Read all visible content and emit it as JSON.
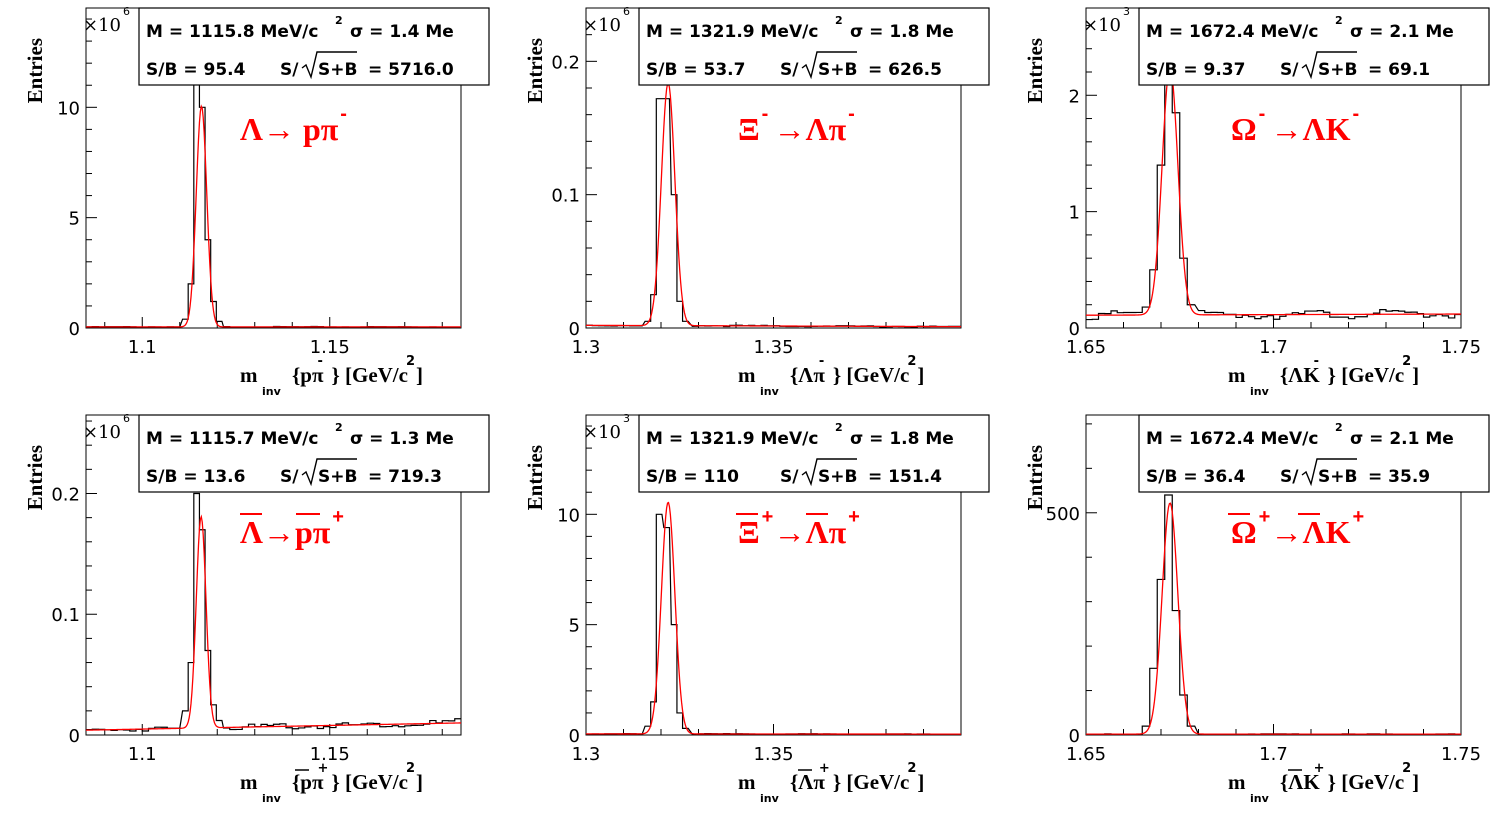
{
  "colors": {
    "frame": "#000000",
    "histogram": "#000000",
    "fit": "#ff0000",
    "decay_label": "#ff0000",
    "background": "#ffffff"
  },
  "common": {
    "ylabel": "Entries"
  },
  "chart_data": [
    {
      "type": "histogram",
      "xlim": [
        1.085,
        1.185
      ],
      "ylim": [
        0,
        14.5
      ],
      "xticks": [
        1.1,
        1.15
      ],
      "xtick_labels": [
        "1.1",
        "1.15"
      ],
      "yticks": [
        0,
        5,
        10
      ],
      "ytick_labels": [
        "0",
        "5",
        "10"
      ],
      "exponent": "×10",
      "exponent_power": "6",
      "xlabel": {
        "m": "m",
        "sub": "inv",
        "expr": "{pπ",
        "sup": "-",
        "rest": "} [GeV/c",
        "unit_sup": "2",
        "close": "]"
      },
      "stats": {
        "mass": "M = 1115.8 MeV/c",
        "mass_sup": "2",
        "sigma": "σ = 1.4 Me",
        "sb": "S/B = 95.4",
        "signif_prefix": "S/",
        "signif_arg": "S+B",
        "signif_val": "= 5716.0"
      },
      "decay": {
        "parts": [
          [
            "Λ→ pπ",
            "-"
          ]
        ],
        "bars": []
      },
      "peak": {
        "mu": 1.1158,
        "sigma": 0.0014,
        "amp": 10.0,
        "bg": [
          0.05,
          0.05
        ]
      },
      "hist_peak": [
        [
          1.1115,
          0.4
        ],
        [
          1.113,
          2.0
        ],
        [
          1.1145,
          11.3
        ],
        [
          1.116,
          10.0
        ],
        [
          1.1175,
          4.0
        ],
        [
          1.119,
          1.2
        ],
        [
          1.1205,
          0.3
        ]
      ]
    },
    {
      "type": "histogram",
      "xlim": [
        1.3,
        1.4
      ],
      "ylim": [
        0,
        0.24
      ],
      "xticks": [
        1.3,
        1.35
      ],
      "xtick_labels": [
        "1.3",
        "1.35"
      ],
      "yticks": [
        0,
        0.1,
        0.2
      ],
      "ytick_labels": [
        "0",
        "0.1",
        "0.2"
      ],
      "exponent": "×10",
      "exponent_power": "6",
      "xlabel": {
        "m": "m",
        "sub": "inv",
        "expr": "{Λπ",
        "sup": "-",
        "rest": "} [GeV/c",
        "unit_sup": "2",
        "close": "]"
      },
      "stats": {
        "mass": "M = 1321.9 MeV/c",
        "mass_sup": "2",
        "sigma": "σ = 1.8 Me",
        "sb": "S/B = 53.7",
        "signif_prefix": "S/",
        "signif_arg": "S+B",
        "signif_val": "= 626.5"
      },
      "decay": {
        "parts": [
          [
            "Ξ",
            "-"
          ],
          [
            "→Λπ",
            "-"
          ]
        ],
        "bars": []
      },
      "peak": {
        "mu": 1.3219,
        "sigma": 0.0018,
        "amp": 0.182,
        "bg": [
          0.002,
          0.001
        ]
      },
      "hist_peak": [
        [
          1.3165,
          0.005
        ],
        [
          1.318,
          0.025
        ],
        [
          1.3195,
          0.172
        ],
        [
          1.3215,
          0.172
        ],
        [
          1.3235,
          0.1
        ],
        [
          1.325,
          0.02
        ],
        [
          1.3265,
          0.005
        ]
      ]
    },
    {
      "type": "histogram",
      "xlim": [
        1.65,
        1.75
      ],
      "ylim": [
        0,
        2.75
      ],
      "xticks": [
        1.65,
        1.7,
        1.75
      ],
      "xtick_labels": [
        "1.65",
        "1.7",
        "1.75"
      ],
      "yticks": [
        0,
        1,
        2
      ],
      "ytick_labels": [
        "0",
        "1",
        "2"
      ],
      "exponent": "×10",
      "exponent_power": "3",
      "xlabel": {
        "m": "m",
        "sub": "inv",
        "expr": "{ΛK",
        "sup": "-",
        "rest": "} [GeV/c",
        "unit_sup": "2",
        "close": "]"
      },
      "stats": {
        "mass": "M = 1672.4 MeV/c",
        "mass_sup": "2",
        "sigma": "σ = 2.1 Me",
        "sb": "S/B = 9.37",
        "signif_prefix": "S/",
        "signif_arg": "S+B",
        "signif_val": "= 69.1"
      },
      "decay": {
        "parts": [
          [
            "Ω",
            "-"
          ],
          [
            "→ΛK",
            "-"
          ]
        ],
        "bars": []
      },
      "peak": {
        "mu": 1.6724,
        "sigma": 0.0021,
        "amp": 2.13,
        "bg": [
          0.11,
          0.12
        ]
      },
      "hist_peak": [
        [
          1.666,
          0.18
        ],
        [
          1.668,
          0.5
        ],
        [
          1.67,
          1.4
        ],
        [
          1.672,
          2.25
        ],
        [
          1.674,
          1.85
        ],
        [
          1.676,
          0.6
        ],
        [
          1.678,
          0.2
        ]
      ]
    },
    {
      "type": "histogram",
      "xlim": [
        1.085,
        1.185
      ],
      "ylim": [
        0,
        0.265
      ],
      "xticks": [
        1.1,
        1.15
      ],
      "xtick_labels": [
        "1.1",
        "1.15"
      ],
      "yticks": [
        0,
        0.1,
        0.2
      ],
      "ytick_labels": [
        "0",
        "0.1",
        "0.2"
      ],
      "exponent": "×10",
      "exponent_power": "6",
      "xlabel": {
        "m": "m",
        "sub": "inv",
        "expr": "{pπ",
        "sup": "+",
        "rest": "} [GeV/c",
        "unit_sup": "2",
        "close": "]"
      },
      "stats": {
        "mass": "M = 1115.7 MeV/c",
        "mass_sup": "2",
        "sigma": "σ = 1.3 Me",
        "sb": "S/B = 13.6",
        "signif_prefix": "S/",
        "signif_arg": "S+B",
        "signif_val": "= 719.3"
      },
      "decay": {
        "parts": [
          [
            "Λ→pπ",
            "+"
          ]
        ],
        "bars": [
          [
            0,
            1
          ],
          [
            3,
            4
          ]
        ]
      },
      "peak": {
        "mu": 1.1157,
        "sigma": 0.0013,
        "amp": 0.175,
        "bg": [
          0.004,
          0.01
        ]
      },
      "hist_peak": [
        [
          1.1115,
          0.02
        ],
        [
          1.113,
          0.06
        ],
        [
          1.1145,
          0.2
        ],
        [
          1.116,
          0.17
        ],
        [
          1.1175,
          0.07
        ],
        [
          1.119,
          0.025
        ],
        [
          1.1205,
          0.012
        ]
      ]
    },
    {
      "type": "histogram",
      "xlim": [
        1.3,
        1.4
      ],
      "ylim": [
        0,
        14.5
      ],
      "xticks": [
        1.3,
        1.35
      ],
      "xtick_labels": [
        "1.3",
        "1.35"
      ],
      "yticks": [
        0,
        5,
        10
      ],
      "ytick_labels": [
        "0",
        "5",
        "10"
      ],
      "exponent": "×10",
      "exponent_power": "3",
      "xlabel": {
        "m": "m",
        "sub": "inv",
        "expr": "{Λπ",
        "sup": "+",
        "rest": "} [GeV/c",
        "unit_sup": "2",
        "close": "]"
      },
      "stats": {
        "mass": "M = 1321.9 MeV/c",
        "mass_sup": "2",
        "sigma": "σ = 1.8 Me",
        "sb": "S/B =  110",
        "signif_prefix": "S/",
        "signif_arg": "S+B",
        "signif_val": "= 151.4"
      },
      "decay": {
        "parts": [
          [
            "Ξ",
            "+"
          ],
          [
            "→Λπ",
            "+"
          ]
        ],
        "bars": [
          [
            0,
            1
          ],
          [
            2,
            3
          ]
        ]
      },
      "peak": {
        "mu": 1.3219,
        "sigma": 0.0018,
        "amp": 10.5,
        "bg": [
          0.05,
          0.04
        ]
      },
      "hist_peak": [
        [
          1.3165,
          0.4
        ],
        [
          1.318,
          1.5
        ],
        [
          1.3195,
          10.0
        ],
        [
          1.3215,
          9.4
        ],
        [
          1.3235,
          5.0
        ],
        [
          1.325,
          1.0
        ],
        [
          1.3265,
          0.3
        ]
      ]
    },
    {
      "type": "histogram",
      "xlim": [
        1.65,
        1.75
      ],
      "ylim": [
        0,
        720
      ],
      "xticks": [
        1.65,
        1.7,
        1.75
      ],
      "xtick_labels": [
        "1.65",
        "1.7",
        "1.75"
      ],
      "yticks": [
        0,
        500
      ],
      "ytick_labels": [
        "0",
        "500"
      ],
      "exponent": "",
      "exponent_power": "",
      "xlabel": {
        "m": "m",
        "sub": "inv",
        "expr": "{ΛK",
        "sup": "+",
        "rest": "} [GeV/c",
        "unit_sup": "2",
        "close": "]"
      },
      "stats": {
        "mass": "M = 1672.4 MeV/c",
        "mass_sup": "2",
        "sigma": "σ = 2.1 Me",
        "sb": "S/B = 36.4",
        "signif_prefix": "S/",
        "signif_arg": "S+B",
        "signif_val": "= 35.9"
      },
      "decay": {
        "parts": [
          [
            "Ω",
            "+"
          ],
          [
            "→ΛK",
            "+"
          ]
        ],
        "bars": [
          [
            0,
            1
          ],
          [
            2,
            3
          ]
        ]
      },
      "peak": {
        "mu": 1.6724,
        "sigma": 0.0021,
        "amp": 520,
        "bg": [
          2,
          2
        ]
      },
      "hist_peak": [
        [
          1.666,
          20
        ],
        [
          1.668,
          150
        ],
        [
          1.67,
          350
        ],
        [
          1.672,
          540
        ],
        [
          1.674,
          280
        ],
        [
          1.676,
          90
        ],
        [
          1.678,
          20
        ]
      ]
    }
  ]
}
